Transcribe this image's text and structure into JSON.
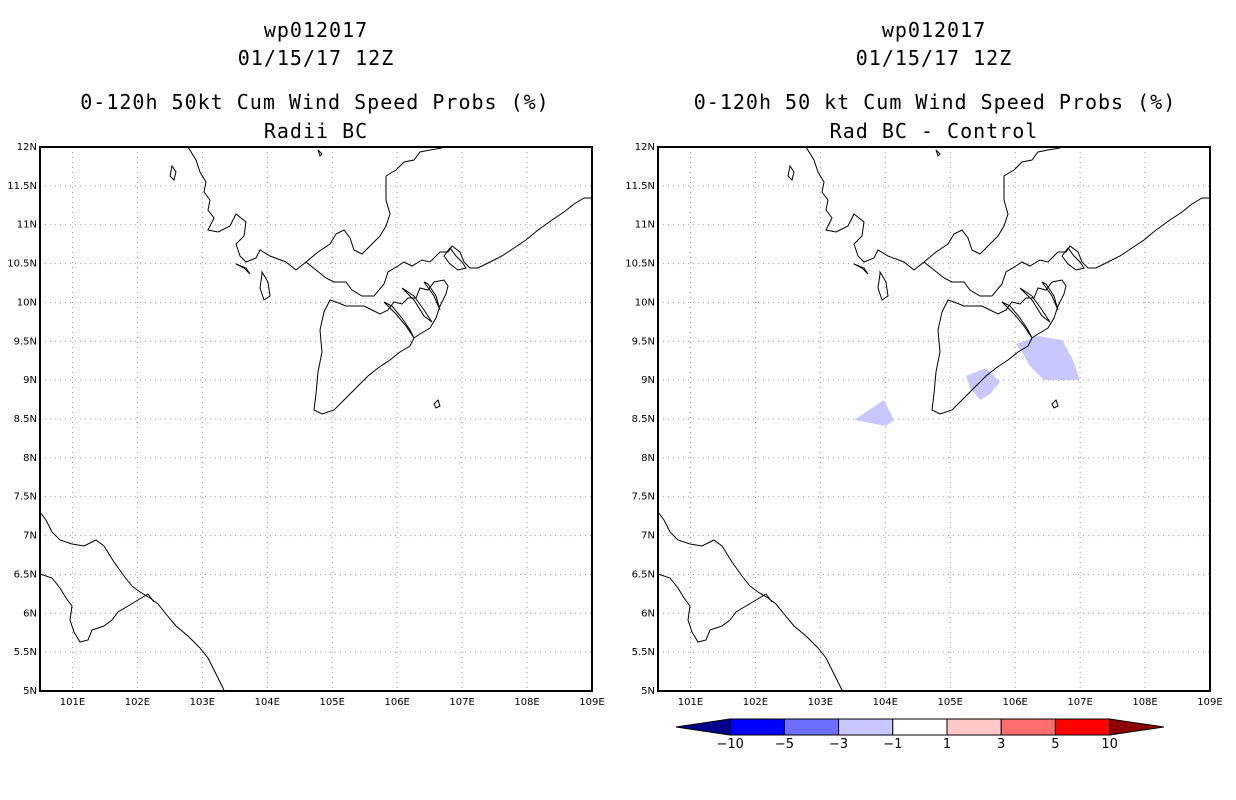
{
  "left_panel": {
    "storm_id": "wp012017",
    "datetime": "01/15/17 12Z",
    "product": "0-120h 50kt Cum Wind Speed Probs (%)",
    "subtitle": "Radii BC"
  },
  "right_panel": {
    "storm_id": "wp012017",
    "datetime": "01/15/17 12Z",
    "product": "0-120h 50 kt Cum Wind Speed Probs (%)",
    "subtitle": "Rad BC - Control"
  },
  "map": {
    "lat_range": [
      5,
      12
    ],
    "lon_range": [
      100.5,
      109
    ],
    "lat_labels": [
      "12N",
      "11.5N",
      "11N",
      "10.5N",
      "10N",
      "9.5N",
      "9N",
      "8.5N",
      "8N",
      "7.5N",
      "7N",
      "6.5N",
      "6N",
      "5.5N",
      "5N"
    ],
    "lon_labels": [
      "101E",
      "102E",
      "103E",
      "104E",
      "105E",
      "106E",
      "107E",
      "108E",
      "109E"
    ]
  },
  "colorbar": {
    "labels": [
      "-10",
      "-5",
      "-3",
      "-1",
      "1",
      "3",
      "5",
      "10"
    ],
    "colors": [
      "#00008c",
      "#0000ff",
      "#6e6eff",
      "#c8c8ff",
      "#ffffff",
      "#ffc8c8",
      "#ff6e6e",
      "#ff0000",
      "#8c0000"
    ]
  },
  "difference_fill_color": "#c8c8ff"
}
